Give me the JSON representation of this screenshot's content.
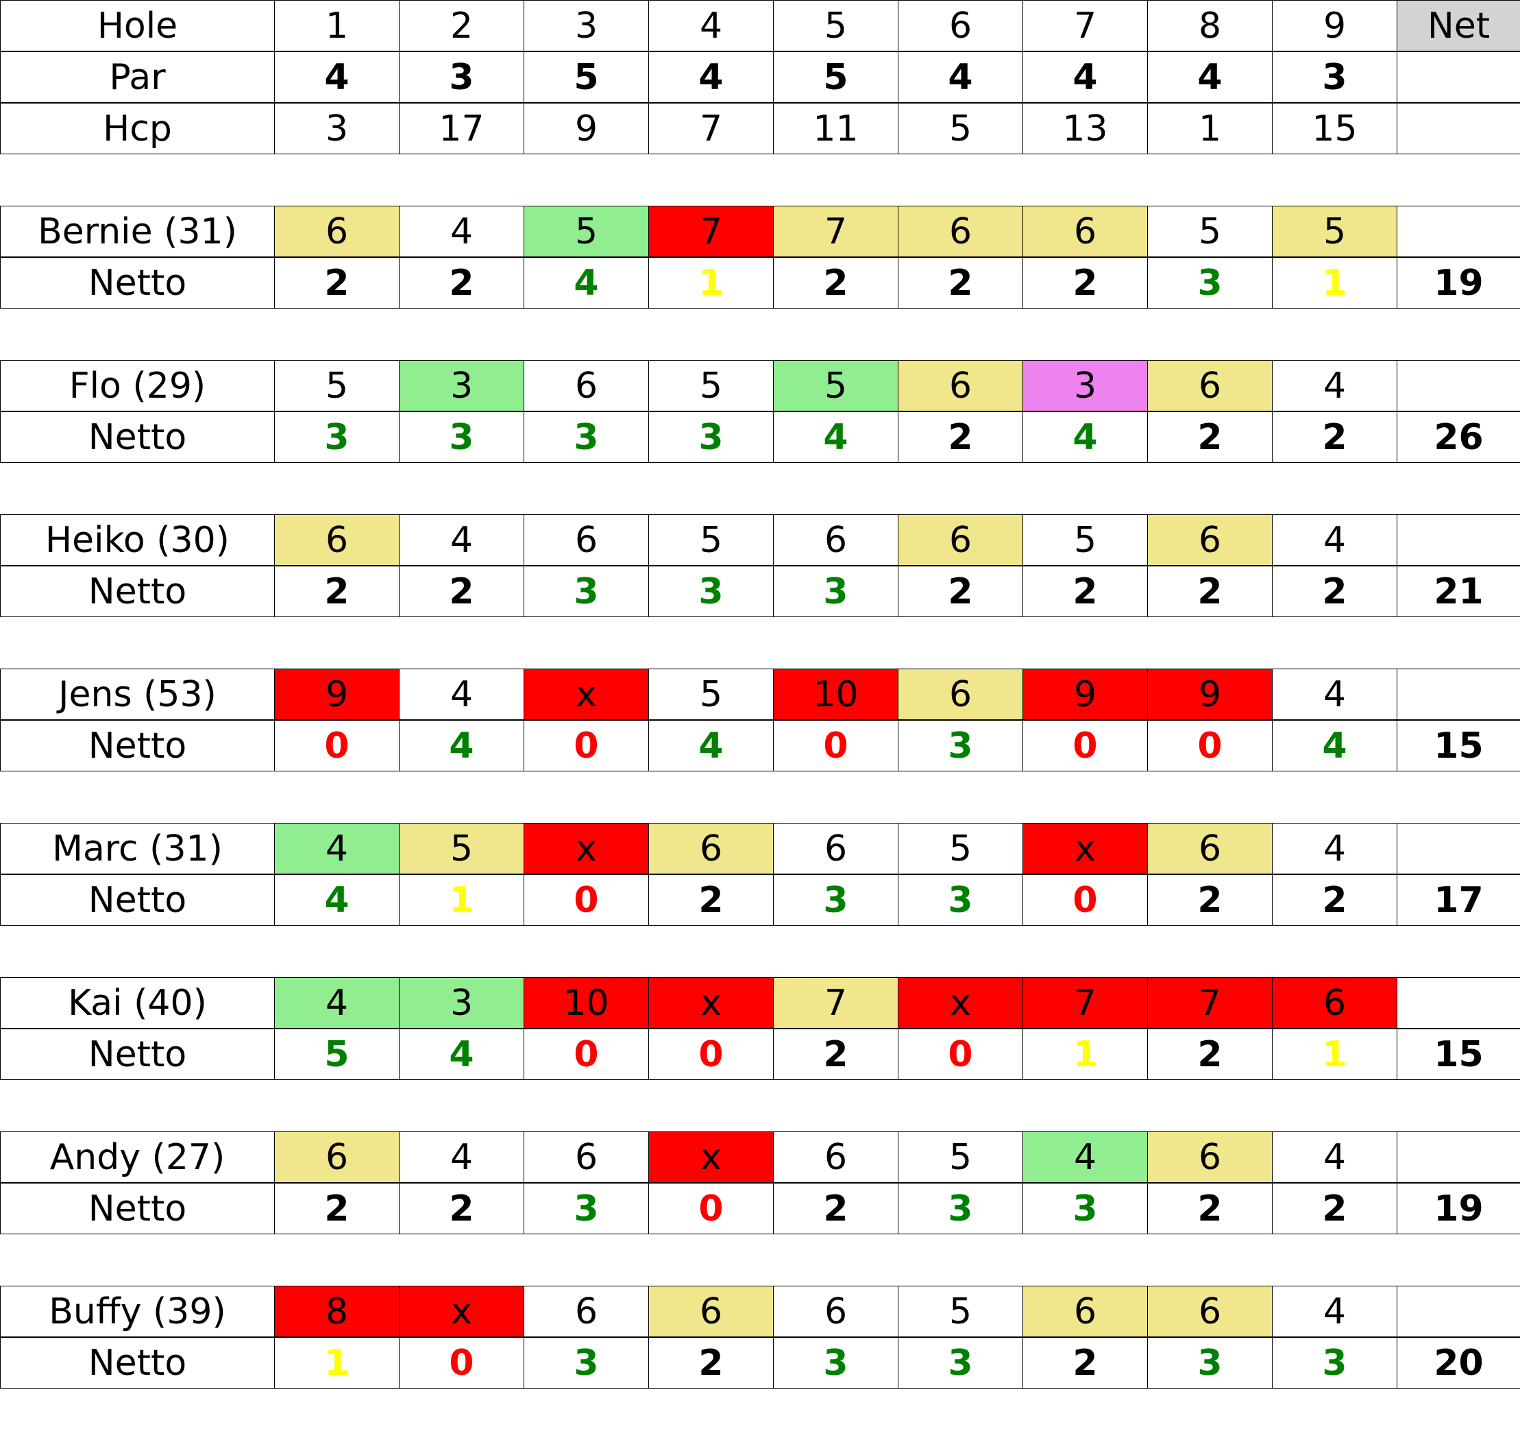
{
  "colors": {
    "grid": "#000000",
    "net_header_bg": "#d3d3d3",
    "highlight": {
      "yellow": "#f0e68c",
      "green": "#90ee90",
      "red": "#ff0000",
      "violet": "#ee82ee"
    },
    "points": {
      "black": "#000000",
      "green": "#008000",
      "yellow": "#ffff00",
      "red": "#ff0000"
    }
  },
  "header": {
    "hole_label": "Hole",
    "holes": [
      "1",
      "2",
      "3",
      "4",
      "5",
      "6",
      "7",
      "8",
      "9"
    ],
    "net_label": "Net",
    "par_label": "Par",
    "par": [
      "4",
      "3",
      "5",
      "4",
      "5",
      "4",
      "4",
      "4",
      "3"
    ],
    "hcp_label": "Hcp",
    "hcp": [
      "3",
      "17",
      "9",
      "7",
      "11",
      "5",
      "13",
      "1",
      "15"
    ]
  },
  "players": [
    {
      "name": "Bernie (31)",
      "scores": [
        "6",
        "4",
        "5",
        "7",
        "7",
        "6",
        "6",
        "5",
        "5"
      ],
      "score_bg": [
        "yellow",
        "",
        "green",
        "red",
        "yellow",
        "yellow",
        "yellow",
        "",
        "yellow"
      ],
      "netto_label": "Netto",
      "netto": [
        "2",
        "2",
        "4",
        "1",
        "2",
        "2",
        "2",
        "3",
        "1"
      ],
      "netto_color": [
        "black",
        "black",
        "green",
        "yellow",
        "black",
        "black",
        "black",
        "green",
        "yellow"
      ],
      "total": "19"
    },
    {
      "name": "Flo (29)",
      "scores": [
        "5",
        "3",
        "6",
        "5",
        "5",
        "6",
        "3",
        "6",
        "4"
      ],
      "score_bg": [
        "",
        "green",
        "",
        "",
        "green",
        "yellow",
        "violet",
        "yellow",
        ""
      ],
      "netto_label": "Netto",
      "netto": [
        "3",
        "3",
        "3",
        "3",
        "4",
        "2",
        "4",
        "2",
        "2"
      ],
      "netto_color": [
        "green",
        "green",
        "green",
        "green",
        "green",
        "black",
        "green",
        "black",
        "black"
      ],
      "total": "26"
    },
    {
      "name": "Heiko (30)",
      "scores": [
        "6",
        "4",
        "6",
        "5",
        "6",
        "6",
        "5",
        "6",
        "4"
      ],
      "score_bg": [
        "yellow",
        "",
        "",
        "",
        "",
        "yellow",
        "",
        "yellow",
        ""
      ],
      "netto_label": "Netto",
      "netto": [
        "2",
        "2",
        "3",
        "3",
        "3",
        "2",
        "2",
        "2",
        "2"
      ],
      "netto_color": [
        "black",
        "black",
        "green",
        "green",
        "green",
        "black",
        "black",
        "black",
        "black"
      ],
      "total": "21"
    },
    {
      "name": "Jens (53)",
      "scores": [
        "9",
        "4",
        "x",
        "5",
        "10",
        "6",
        "9",
        "9",
        "4"
      ],
      "score_bg": [
        "red",
        "",
        "red",
        "",
        "red",
        "yellow",
        "red",
        "red",
        ""
      ],
      "netto_label": "Netto",
      "netto": [
        "0",
        "4",
        "0",
        "4",
        "0",
        "3",
        "0",
        "0",
        "4"
      ],
      "netto_color": [
        "red",
        "green",
        "red",
        "green",
        "red",
        "green",
        "red",
        "red",
        "green"
      ],
      "total": "15"
    },
    {
      "name": "Marc (31)",
      "scores": [
        "4",
        "5",
        "x",
        "6",
        "6",
        "5",
        "x",
        "6",
        "4"
      ],
      "score_bg": [
        "green",
        "yellow",
        "red",
        "yellow",
        "",
        "",
        "red",
        "yellow",
        ""
      ],
      "netto_label": "Netto",
      "netto": [
        "4",
        "1",
        "0",
        "2",
        "3",
        "3",
        "0",
        "2",
        "2"
      ],
      "netto_color": [
        "green",
        "yellow",
        "red",
        "black",
        "green",
        "green",
        "red",
        "black",
        "black"
      ],
      "total": "17"
    },
    {
      "name": "Kai (40)",
      "scores": [
        "4",
        "3",
        "10",
        "x",
        "7",
        "x",
        "7",
        "7",
        "6"
      ],
      "score_bg": [
        "green",
        "green",
        "red",
        "red",
        "yellow",
        "red",
        "red",
        "red",
        "red"
      ],
      "netto_label": "Netto",
      "netto": [
        "5",
        "4",
        "0",
        "0",
        "2",
        "0",
        "1",
        "2",
        "1"
      ],
      "netto_color": [
        "green",
        "green",
        "red",
        "red",
        "black",
        "red",
        "yellow",
        "black",
        "yellow"
      ],
      "total": "15"
    },
    {
      "name": "Andy (27)",
      "scores": [
        "6",
        "4",
        "6",
        "x",
        "6",
        "5",
        "4",
        "6",
        "4"
      ],
      "score_bg": [
        "yellow",
        "",
        "",
        "red",
        "",
        "",
        "green",
        "yellow",
        ""
      ],
      "netto_label": "Netto",
      "netto": [
        "2",
        "2",
        "3",
        "0",
        "2",
        "3",
        "3",
        "2",
        "2"
      ],
      "netto_color": [
        "black",
        "black",
        "green",
        "red",
        "black",
        "green",
        "green",
        "black",
        "black"
      ],
      "total": "19"
    },
    {
      "name": "Buffy (39)",
      "scores": [
        "8",
        "x",
        "6",
        "6",
        "6",
        "5",
        "6",
        "6",
        "4"
      ],
      "score_bg": [
        "red",
        "red",
        "",
        "yellow",
        "",
        "",
        "yellow",
        "yellow",
        ""
      ],
      "netto_label": "Netto",
      "netto": [
        "1",
        "0",
        "3",
        "2",
        "3",
        "3",
        "2",
        "3",
        "3"
      ],
      "netto_color": [
        "yellow",
        "red",
        "green",
        "black",
        "green",
        "green",
        "black",
        "green",
        "green"
      ],
      "total": "20"
    }
  ]
}
